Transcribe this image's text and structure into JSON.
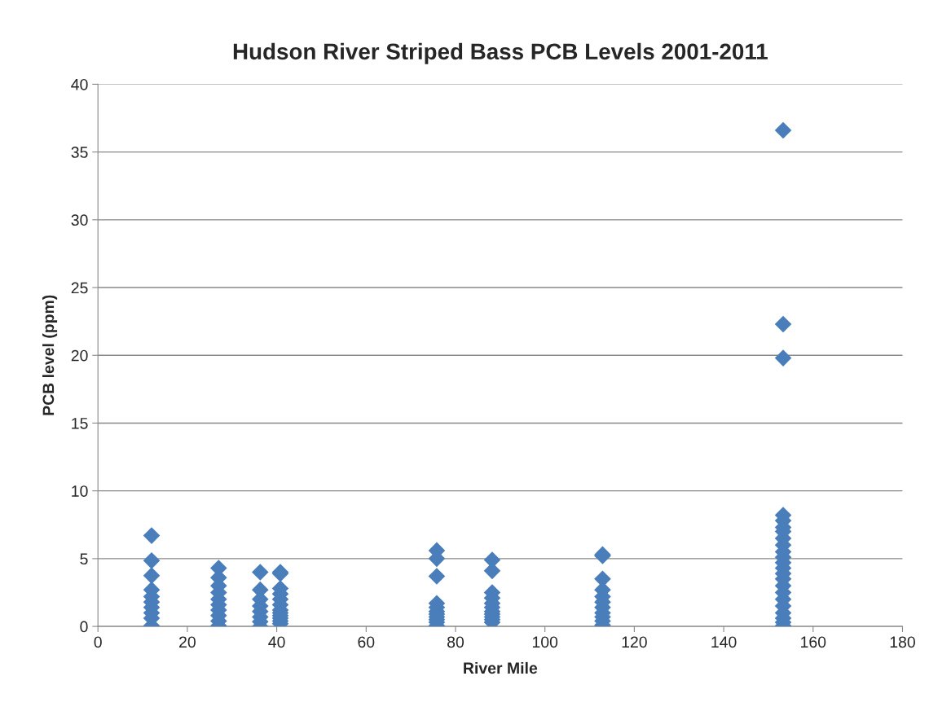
{
  "chart_data": {
    "type": "scatter",
    "title": "Hudson River Striped Bass PCB Levels 2001-2011",
    "xlabel": "River Mile",
    "ylabel": "PCB level (ppm)",
    "x": [
      12,
      12,
      12,
      12,
      12,
      12,
      12,
      12,
      12,
      12,
      27,
      27,
      27,
      27,
      27,
      27,
      27,
      27,
      27,
      27,
      36.3,
      36.3,
      36.3,
      36.3,
      36.3,
      36.3,
      36.3,
      36.3,
      40.8,
      40.8,
      40.8,
      40.8,
      40.8,
      40.8,
      40.8,
      40.8,
      40.8,
      40.8,
      40.8,
      40.8,
      75.8,
      75.8,
      75.8,
      75.8,
      75.8,
      75.8,
      75.8,
      75.8,
      75.8,
      75.8,
      75.8,
      88.2,
      88.2,
      88.2,
      88.2,
      88.2,
      88.2,
      88.2,
      88.2,
      88.2,
      88.2,
      88.2,
      112.9,
      112.9,
      112.9,
      112.9,
      112.9,
      112.9,
      112.9,
      112.9,
      112.9,
      112.9,
      112.9,
      153.3,
      153.3,
      153.3,
      153.3,
      153.3,
      153.3,
      153.3,
      153.3,
      153.3,
      153.3,
      153.3,
      153.3,
      153.3,
      153.3,
      153.3,
      153.3,
      153.3,
      153.3,
      153.3,
      153.3,
      153.3,
      153.3,
      153.3
    ],
    "values": [
      6.7,
      4.85,
      3.75,
      2.7,
      2.2,
      1.8,
      1.4,
      1.0,
      0.6,
      0.05,
      4.3,
      3.6,
      3.0,
      2.5,
      2.0,
      1.6,
      1.2,
      0.8,
      0.4,
      0.05,
      4.0,
      2.7,
      2.0,
      1.5,
      1.1,
      0.7,
      0.35,
      0.0,
      4.0,
      3.9,
      2.8,
      2.4,
      2.0,
      1.6,
      1.2,
      1.0,
      0.8,
      0.6,
      0.4,
      0.2,
      5.6,
      5.0,
      3.7,
      1.7,
      1.4,
      1.1,
      0.9,
      0.7,
      0.5,
      0.3,
      0.05,
      4.9,
      4.1,
      2.5,
      2.1,
      1.7,
      1.4,
      1.1,
      0.9,
      0.7,
      0.5,
      0.3,
      5.3,
      5.2,
      3.5,
      2.7,
      2.2,
      1.8,
      1.4,
      1.0,
      0.7,
      0.4,
      0.1,
      36.6,
      22.3,
      19.8,
      8.2,
      7.8,
      7.3,
      7.0,
      6.5,
      6.0,
      5.5,
      5.1,
      4.7,
      4.3,
      3.9,
      3.5,
      3.0,
      2.5,
      2.0,
      1.5,
      1.0,
      0.6,
      0.3,
      0.05
    ],
    "color": "#4a7ebb",
    "marker": "diamond",
    "xlim": [
      0,
      180
    ],
    "xticks": [
      0,
      20,
      40,
      60,
      80,
      100,
      120,
      140,
      160,
      180
    ],
    "ylim": [
      0,
      40
    ],
    "yticks": [
      0,
      5,
      10,
      15,
      20,
      25,
      30,
      35,
      40
    ],
    "grid": "y",
    "legend": false
  }
}
